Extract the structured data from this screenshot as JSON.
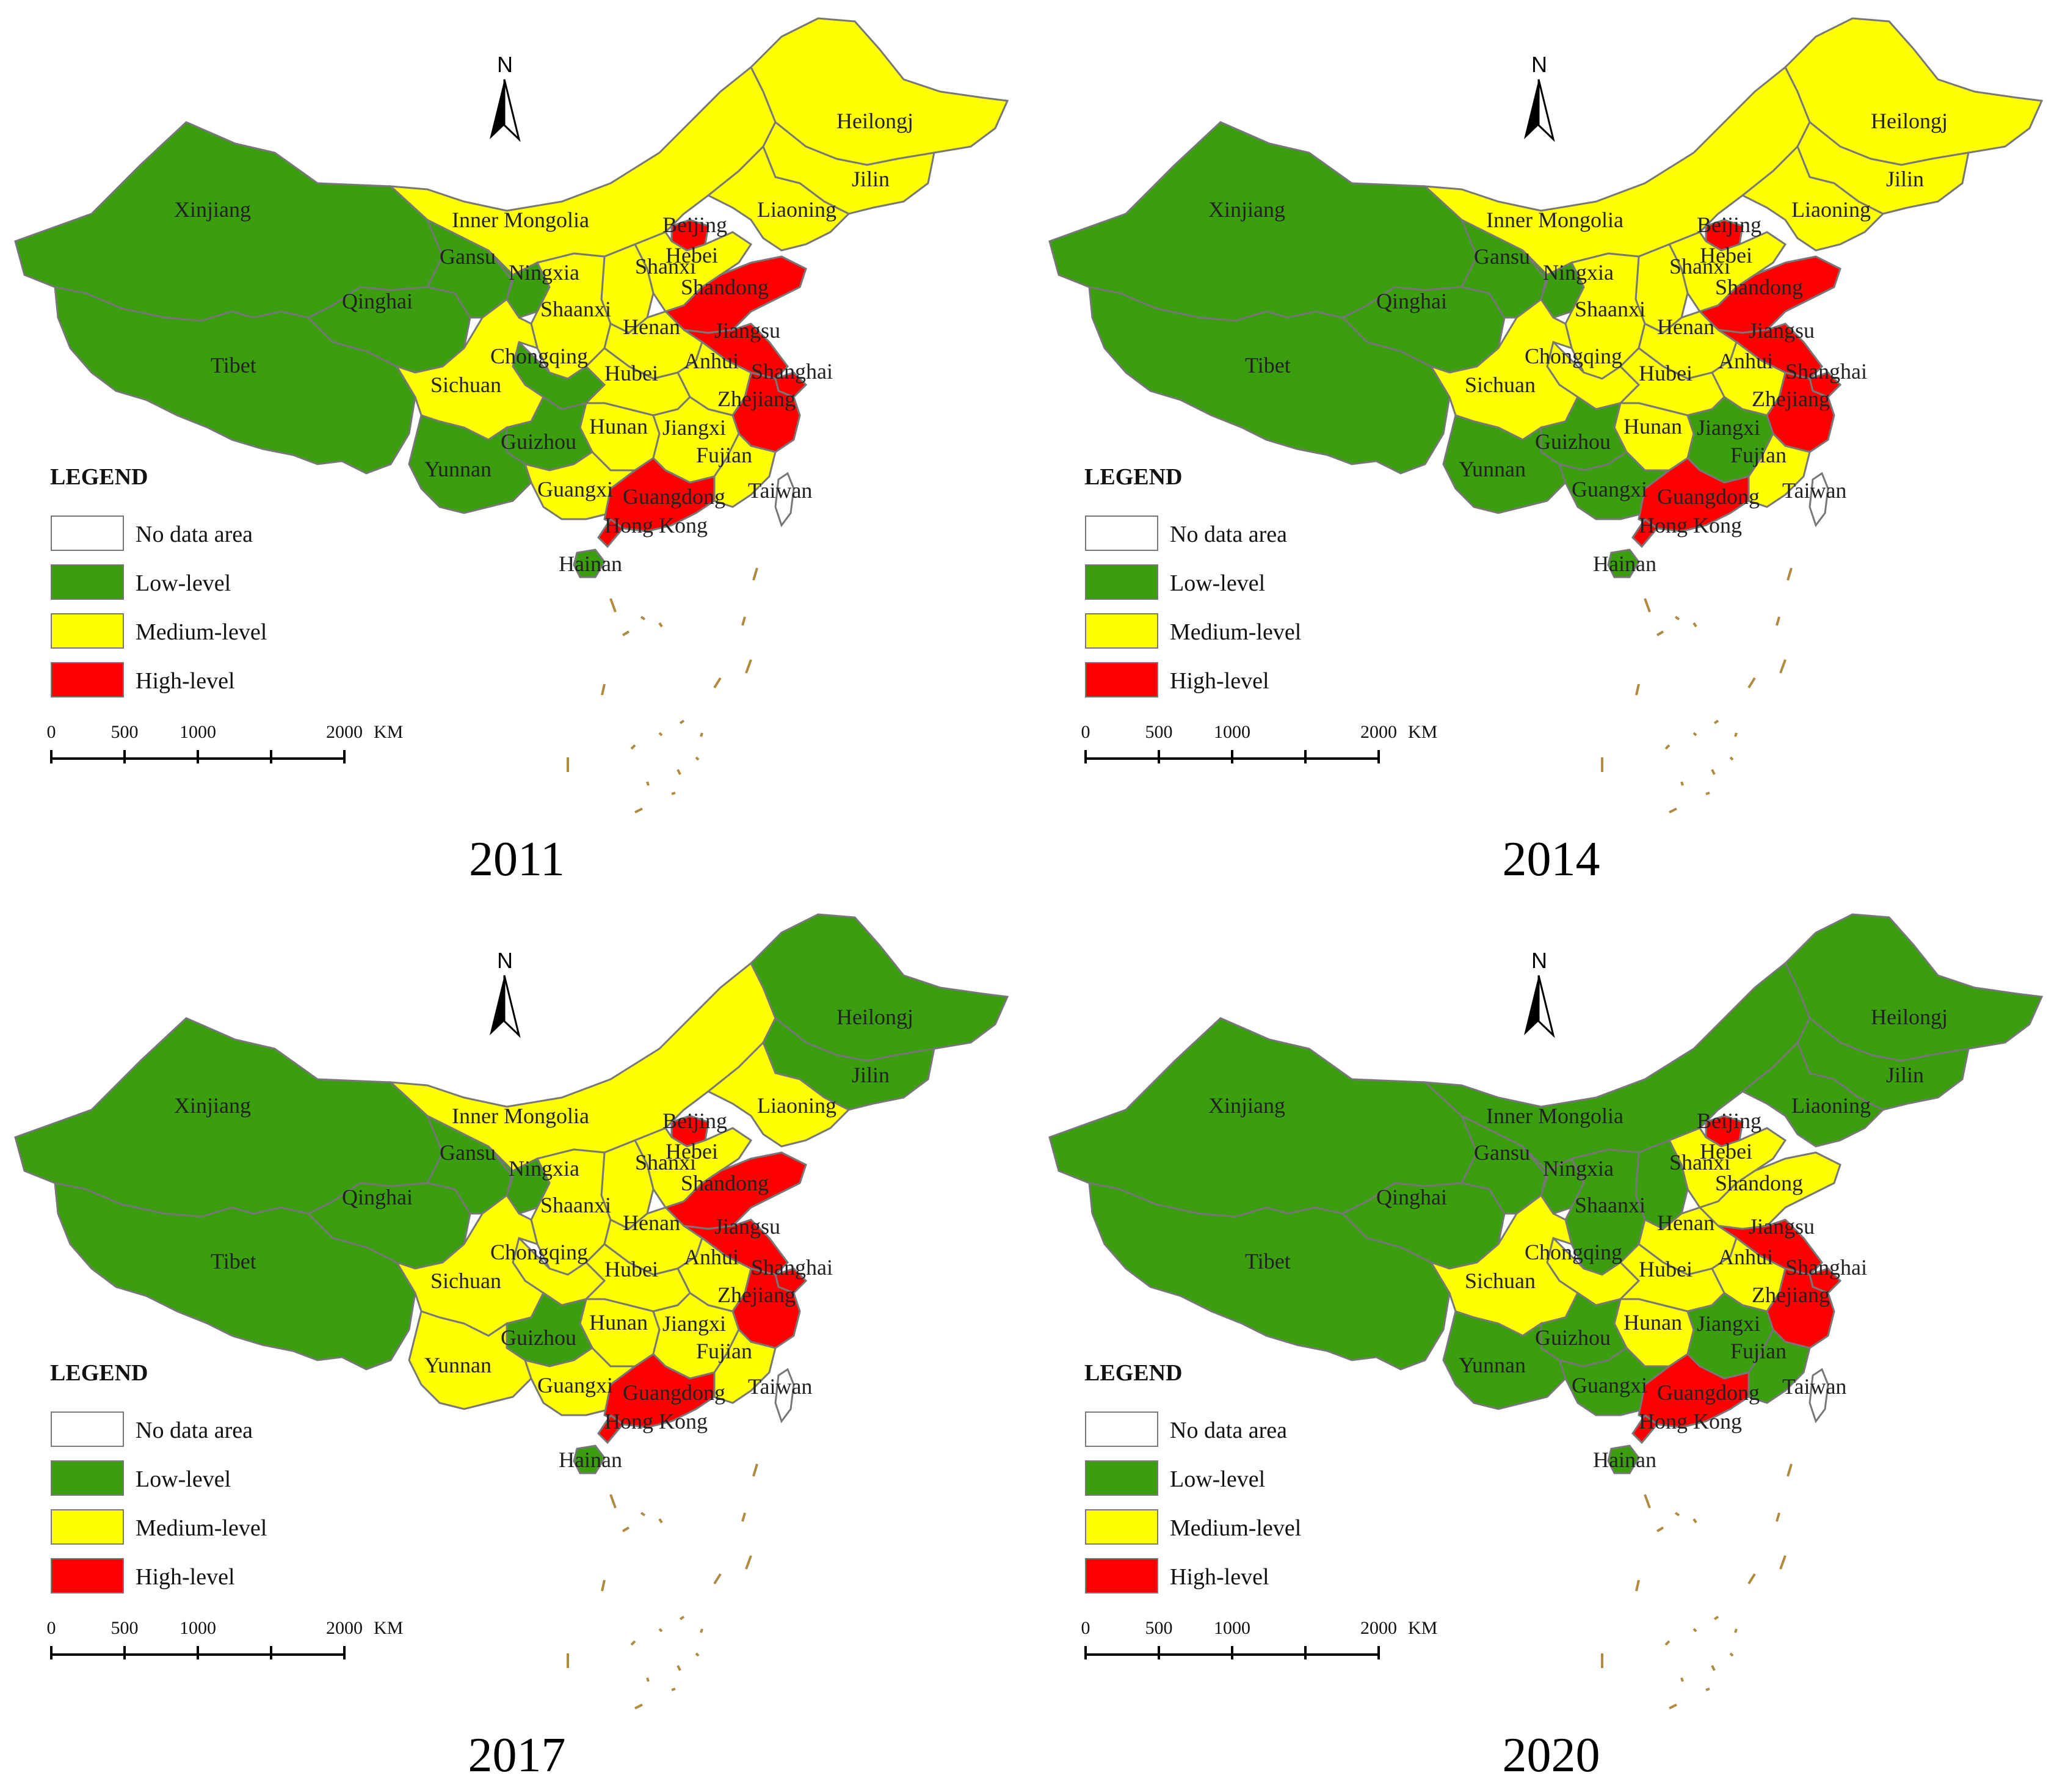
{
  "colors": {
    "no_data": "#ffffff",
    "low": "#3a9e0e",
    "medium": "#ffff00",
    "high": "#ff0000"
  },
  "north_label": "N",
  "legend": {
    "title": "LEGEND",
    "items": [
      {
        "key": "no_data",
        "label": "No data area"
      },
      {
        "key": "low",
        "label": "Low-level"
      },
      {
        "key": "medium",
        "label": "Medium-level"
      },
      {
        "key": "high",
        "label": "High-level"
      }
    ]
  },
  "scale_bar": {
    "ticks": [
      "0",
      "500",
      "1000",
      "2000"
    ],
    "unit": "KM"
  },
  "province_names": {
    "xinjiang": "Xinjiang",
    "tibet": "Tibet",
    "qinghai": "Qinghai",
    "gansu": "Gansu",
    "inner_mongolia": "Inner Mongolia",
    "heilongjiang": "Heilongj",
    "jilin": "Jilin",
    "liaoning": "Liaoning",
    "beijing": "Beijing",
    "hebei": "Hebei",
    "ningxia": "Ningxia",
    "shanxi": "Shanxi",
    "shandong": "Shandong",
    "shaanxi": "Shaanxi",
    "henan": "Henan",
    "jiangsu": "Jiangsu",
    "anhui": "Anhui",
    "shanghai": "Shanghai",
    "chongqing": "Chongqing",
    "sichuan": "Sichuan",
    "hubei": "Hubei",
    "zhejiang": "Zhejiang",
    "hunan": "Hunan",
    "jiangxi": "Jiangxi",
    "guizhou": "Guizhou",
    "yunnan": "Yunnan",
    "fujian": "Fujian",
    "guangxi": "Guangxi",
    "guangdong": "Guangdong",
    "taiwan": "Taiwan",
    "hong_kong": "Hong Kong",
    "hainan": "Hainan"
  },
  "maps": [
    {
      "year": "2011",
      "levels": {
        "xinjiang": "low",
        "tibet": "low",
        "qinghai": "low",
        "gansu": "low",
        "ningxia": "low",
        "inner_mongolia": "medium",
        "heilongjiang": "medium",
        "jilin": "medium",
        "liaoning": "medium",
        "hebei": "medium",
        "shanxi": "medium",
        "shaanxi": "medium",
        "henan": "medium",
        "anhui": "medium",
        "hubei": "medium",
        "hunan": "medium",
        "jiangxi": "medium",
        "fujian": "medium",
        "guangxi": "medium",
        "sichuan": "medium",
        "chongqing": "low",
        "guizhou": "low",
        "yunnan": "low",
        "hainan": "low",
        "beijing": "high",
        "shandong": "high",
        "jiangsu": "high",
        "shanghai": "high",
        "zhejiang": "high",
        "guangdong": "high",
        "hong_kong": "high",
        "taiwan": "no_data"
      }
    },
    {
      "year": "2014",
      "levels": {
        "xinjiang": "low",
        "tibet": "low",
        "qinghai": "low",
        "gansu": "low",
        "ningxia": "low",
        "inner_mongolia": "medium",
        "heilongjiang": "medium",
        "jilin": "medium",
        "liaoning": "medium",
        "hebei": "medium",
        "shanxi": "medium",
        "shaanxi": "medium",
        "henan": "medium",
        "anhui": "medium",
        "hubei": "medium",
        "hunan": "medium",
        "jiangxi": "low",
        "fujian": "medium",
        "guangxi": "low",
        "sichuan": "medium",
        "chongqing": "medium",
        "guizhou": "low",
        "yunnan": "low",
        "hainan": "low",
        "beijing": "high",
        "shandong": "high",
        "jiangsu": "high",
        "shanghai": "high",
        "zhejiang": "high",
        "guangdong": "high",
        "hong_kong": "high",
        "taiwan": "no_data"
      }
    },
    {
      "year": "2017",
      "levels": {
        "xinjiang": "low",
        "tibet": "low",
        "qinghai": "low",
        "gansu": "low",
        "ningxia": "low",
        "inner_mongolia": "medium",
        "heilongjiang": "low",
        "jilin": "low",
        "liaoning": "medium",
        "hebei": "medium",
        "shanxi": "medium",
        "shaanxi": "medium",
        "henan": "medium",
        "anhui": "medium",
        "hubei": "medium",
        "hunan": "medium",
        "jiangxi": "medium",
        "fujian": "medium",
        "guangxi": "medium",
        "sichuan": "medium",
        "chongqing": "medium",
        "guizhou": "low",
        "yunnan": "medium",
        "hainan": "low",
        "beijing": "high",
        "shandong": "high",
        "jiangsu": "high",
        "shanghai": "high",
        "zhejiang": "high",
        "guangdong": "high",
        "hong_kong": "high",
        "taiwan": "no_data"
      }
    },
    {
      "year": "2020",
      "levels": {
        "xinjiang": "low",
        "tibet": "low",
        "qinghai": "low",
        "gansu": "low",
        "ningxia": "low",
        "inner_mongolia": "low",
        "heilongjiang": "low",
        "jilin": "low",
        "liaoning": "low",
        "hebei": "medium",
        "shanxi": "low",
        "shaanxi": "low",
        "henan": "medium",
        "anhui": "medium",
        "hubei": "medium",
        "hunan": "medium",
        "jiangxi": "low",
        "fujian": "low",
        "guangxi": "low",
        "sichuan": "medium",
        "chongqing": "medium",
        "guizhou": "low",
        "yunnan": "low",
        "hainan": "low",
        "beijing": "high",
        "shandong": "medium",
        "jiangsu": "high",
        "shanghai": "high",
        "zhejiang": "high",
        "guangdong": "high",
        "hong_kong": "high",
        "taiwan": "no_data"
      }
    }
  ]
}
